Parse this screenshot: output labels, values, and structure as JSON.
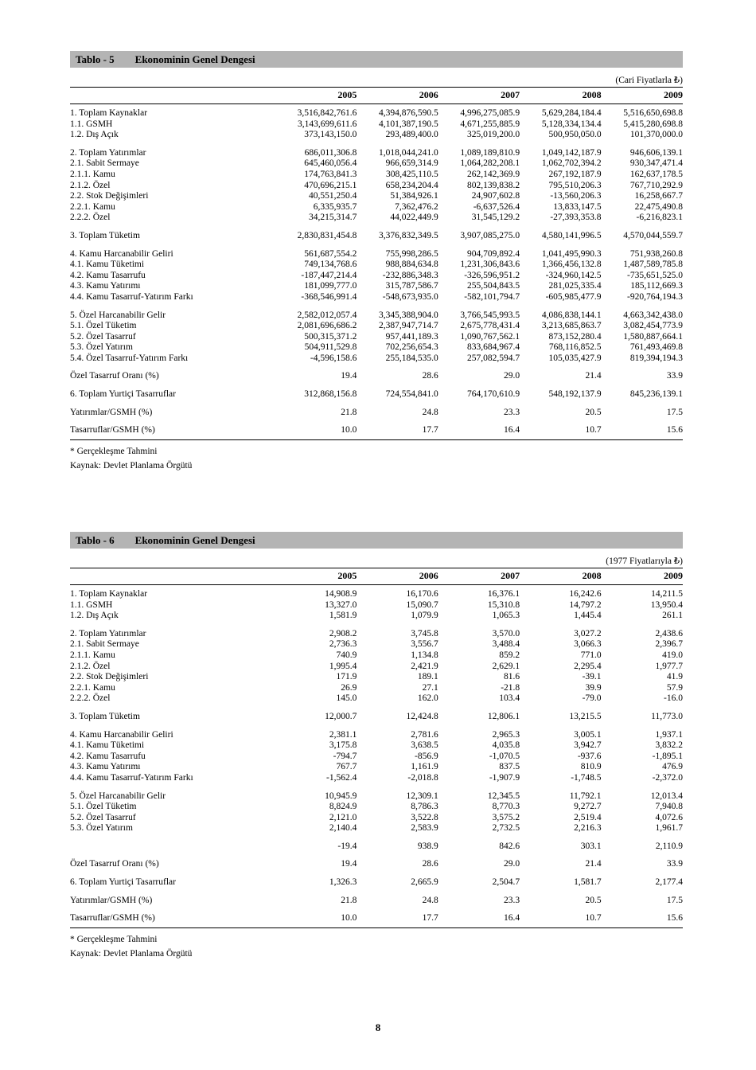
{
  "page": {
    "number": "8"
  },
  "colors": {
    "title_bar_gray": "#b4b4b4",
    "text": "#000000",
    "background": "#ffffff"
  },
  "tables": [
    {
      "title_label": "Tablo - 5",
      "title_text": "Ekonominin Genel Dengesi",
      "unit_note": "(Cari Fiyatlarla ₺)",
      "years": [
        "2005",
        "2006",
        "2007",
        "2008",
        "2009"
      ],
      "rows": [
        {
          "label": "1. Toplam Kaynaklar",
          "gap": false,
          "values": [
            "3,516,842,761.6",
            "4,394,876,590.5",
            "4,996,275,085.9",
            "5,629,284,184.4",
            "5,516,650,698.8"
          ]
        },
        {
          "label": "1.1. GSMH",
          "gap": false,
          "values": [
            "3,143,699,611.6",
            "4,101,387,190.5",
            "4,671,255,885.9",
            "5,128,334,134.4",
            "5,415,280,698.8"
          ]
        },
        {
          "label": "1.2. Dış Açık",
          "gap": false,
          "values": [
            "373,143,150.0",
            "293,489,400.0",
            "325,019,200.0",
            "500,950,050.0",
            "101,370,000.0"
          ]
        },
        {
          "label": "2. Toplam Yatırımlar",
          "gap": true,
          "values": [
            "686,011,306.8",
            "1,018,044,241.0",
            "1,089,189,810.9",
            "1,049,142,187.9",
            "946,606,139.1"
          ]
        },
        {
          "label": "2.1. Sabit Sermaye",
          "gap": false,
          "values": [
            "645,460,056.4",
            "966,659,314.9",
            "1,064,282,208.1",
            "1,062,702,394.2",
            "930,347,471.4"
          ]
        },
        {
          "label": "2.1.1. Kamu",
          "gap": false,
          "values": [
            "174,763,841.3",
            "308,425,110.5",
            "262,142,369.9",
            "267,192,187.9",
            "162,637,178.5"
          ]
        },
        {
          "label": "2.1.2. Özel",
          "gap": false,
          "values": [
            "470,696,215.1",
            "658,234,204.4",
            "802,139,838.2",
            "795,510,206.3",
            "767,710,292.9"
          ]
        },
        {
          "label": "2.2. Stok Değişimleri",
          "gap": false,
          "values": [
            "40,551,250.4",
            "51,384,926.1",
            "24,907,602.8",
            "-13,560,206.3",
            "16,258,667.7"
          ]
        },
        {
          "label": "2.2.1. Kamu",
          "gap": false,
          "values": [
            "6,335,935.7",
            "7,362,476.2",
            "-6,637,526.4",
            "13,833,147.5",
            "22,475,490.8"
          ]
        },
        {
          "label": "2.2.2. Özel",
          "gap": false,
          "values": [
            "34,215,314.7",
            "44,022,449.9",
            "31,545,129.2",
            "-27,393,353.8",
            "-6,216,823.1"
          ]
        },
        {
          "label": "3. Toplam Tüketim",
          "gap": true,
          "values": [
            "2,830,831,454.8",
            "3,376,832,349.5",
            "3,907,085,275.0",
            "4,580,141,996.5",
            "4,570,044,559.7"
          ]
        },
        {
          "label": "4. Kamu Harcanabilir Geliri",
          "gap": true,
          "values": [
            "561,687,554.2",
            "755,998,286.5",
            "904,709,892.4",
            "1,041,495,990.3",
            "751,938,260.8"
          ]
        },
        {
          "label": "4.1. Kamu Tüketimi",
          "gap": false,
          "values": [
            "749,134,768.6",
            "988,884,634.8",
            "1,231,306,843.6",
            "1,366,456,132.8",
            "1,487,589,785.8"
          ]
        },
        {
          "label": "4.2. Kamu Tasarrufu",
          "gap": false,
          "values": [
            "-187,447,214.4",
            "-232,886,348.3",
            "-326,596,951.2",
            "-324,960,142.5",
            "-735,651,525.0"
          ]
        },
        {
          "label": "4.3. Kamu Yatırımı",
          "gap": false,
          "values": [
            "181,099,777.0",
            "315,787,586.7",
            "255,504,843.5",
            "281,025,335.4",
            "185,112,669.3"
          ]
        },
        {
          "label": "4.4. Kamu Tasarruf-Yatırım Farkı",
          "gap": false,
          "values": [
            "-368,546,991.4",
            "-548,673,935.0",
            "-582,101,794.7",
            "-605,985,477.9",
            "-920,764,194.3"
          ]
        },
        {
          "label": "5. Özel Harcanabilir Gelir",
          "gap": true,
          "values": [
            "2,582,012,057.4",
            "3,345,388,904.0",
            "3,766,545,993.5",
            "4,086,838,144.1",
            "4,663,342,438.0"
          ]
        },
        {
          "label": "5.1. Özel Tüketim",
          "gap": false,
          "values": [
            "2,081,696,686.2",
            "2,387,947,714.7",
            "2,675,778,431.4",
            "3,213,685,863.7",
            "3,082,454,773.9"
          ]
        },
        {
          "label": "5.2. Özel Tasarruf",
          "gap": false,
          "values": [
            "500,315,371.2",
            "957,441,189.3",
            "1,090,767,562.1",
            "873,152,280.4",
            "1,580,887,664.1"
          ]
        },
        {
          "label": "5.3. Özel Yatırım",
          "gap": false,
          "values": [
            "504,911,529.8",
            "702,256,654.3",
            "833,684,967.4",
            "768,116,852.5",
            "761,493,469.8"
          ]
        },
        {
          "label": "5.4. Özel Tasarruf-Yatırım Farkı",
          "gap": false,
          "values": [
            "-4,596,158.6",
            "255,184,535.0",
            "257,082,594.7",
            "105,035,427.9",
            "819,394,194.3"
          ]
        },
        {
          "label": "Özel Tasarruf Oranı (%)",
          "gap": true,
          "values": [
            "19.4",
            "28.6",
            "29.0",
            "21.4",
            "33.9"
          ]
        },
        {
          "label": "6. Toplam Yurtiçi Tasarruflar",
          "gap": true,
          "values": [
            "312,868,156.8",
            "724,554,841.0",
            "764,170,610.9",
            "548,192,137.9",
            "845,236,139.1"
          ]
        },
        {
          "label": "Yatırımlar/GSMH (%)",
          "gap": true,
          "values": [
            "21.8",
            "24.8",
            "23.3",
            "20.5",
            "17.5"
          ]
        },
        {
          "label": "Tasarruflar/GSMH (%)",
          "gap": true,
          "values": [
            "10.0",
            "17.7",
            "16.4",
            "10.7",
            "15.6"
          ]
        }
      ],
      "footnotes": [
        "* Gerçekleşme Tahmini",
        "Kaynak: Devlet Planlama Örgütü"
      ]
    },
    {
      "title_label": "Tablo - 6",
      "title_text": "Ekonominin Genel Dengesi",
      "unit_note": "(1977 Fiyatlarıyla ₺)",
      "years": [
        "2005",
        "2006",
        "2007",
        "2008",
        "2009"
      ],
      "rows": [
        {
          "label": "1. Toplam Kaynaklar",
          "gap": false,
          "values": [
            "14,908.9",
            "16,170.6",
            "16,376.1",
            "16,242.6",
            "14,211.5"
          ]
        },
        {
          "label": "1.1. GSMH",
          "gap": false,
          "values": [
            "13,327.0",
            "15,090.7",
            "15,310.8",
            "14,797.2",
            "13,950.4"
          ]
        },
        {
          "label": "1.2. Dış Açık",
          "gap": false,
          "values": [
            "1,581.9",
            "1,079.9",
            "1,065.3",
            "1,445.4",
            "261.1"
          ]
        },
        {
          "label": "2. Toplam Yatırımlar",
          "gap": true,
          "values": [
            "2,908.2",
            "3,745.8",
            "3,570.0",
            "3,027.2",
            "2,438.6"
          ]
        },
        {
          "label": "2.1. Sabit Sermaye",
          "gap": false,
          "values": [
            "2,736.3",
            "3,556.7",
            "3,488.4",
            "3,066.3",
            "2,396.7"
          ]
        },
        {
          "label": "2.1.1. Kamu",
          "gap": false,
          "values": [
            "740.9",
            "1,134.8",
            "859.2",
            "771.0",
            "419.0"
          ]
        },
        {
          "label": "2.1.2. Özel",
          "gap": false,
          "values": [
            "1,995.4",
            "2,421.9",
            "2,629.1",
            "2,295.4",
            "1,977.7"
          ]
        },
        {
          "label": "2.2. Stok Değişimleri",
          "gap": false,
          "values": [
            "171.9",
            "189.1",
            "81.6",
            "-39.1",
            "41.9"
          ]
        },
        {
          "label": "2.2.1. Kamu",
          "gap": false,
          "values": [
            "26.9",
            "27.1",
            "-21.8",
            "39.9",
            "57.9"
          ]
        },
        {
          "label": "2.2.2. Özel",
          "gap": false,
          "values": [
            "145.0",
            "162.0",
            "103.4",
            "-79.0",
            "-16.0"
          ]
        },
        {
          "label": "3. Toplam Tüketim",
          "gap": true,
          "values": [
            "12,000.7",
            "12,424.8",
            "12,806.1",
            "13,215.5",
            "11,773.0"
          ]
        },
        {
          "label": "4. Kamu Harcanabilir Geliri",
          "gap": true,
          "values": [
            "2,381.1",
            "2,781.6",
            "2,965.3",
            "3,005.1",
            "1,937.1"
          ]
        },
        {
          "label": "4.1. Kamu Tüketimi",
          "gap": false,
          "values": [
            "3,175.8",
            "3,638.5",
            "4,035.8",
            "3,942.7",
            "3,832.2"
          ]
        },
        {
          "label": "4.2. Kamu Tasarrufu",
          "gap": false,
          "values": [
            "-794.7",
            "-856.9",
            "-1,070.5",
            "-937.6",
            "-1,895.1"
          ]
        },
        {
          "label": "4.3. Kamu Yatırımı",
          "gap": false,
          "values": [
            "767.7",
            "1,161.9",
            "837.5",
            "810.9",
            "476.9"
          ]
        },
        {
          "label": "4.4. Kamu Tasarruf-Yatırım Farkı",
          "gap": false,
          "values": [
            "-1,562.4",
            "-2,018.8",
            "-1,907.9",
            "-1,748.5",
            "-2,372.0"
          ]
        },
        {
          "label": "5. Özel Harcanabilir Gelir",
          "gap": true,
          "values": [
            "10,945.9",
            "12,309.1",
            "12,345.5",
            "11,792.1",
            "12,013.4"
          ]
        },
        {
          "label": "5.1. Özel Tüketim",
          "gap": false,
          "values": [
            "8,824.9",
            "8,786.3",
            "8,770.3",
            "9,272.7",
            "7,940.8"
          ]
        },
        {
          "label": "5.2. Özel Tasarruf",
          "gap": false,
          "values": [
            "2,121.0",
            "3,522.8",
            "3,575.2",
            "2,519.4",
            "4,072.6"
          ]
        },
        {
          "label": "5.3. Özel Yatırım",
          "gap": false,
          "values": [
            "2,140.4",
            "2,583.9",
            "2,732.5",
            "2,216.3",
            "1,961.7"
          ]
        },
        {
          "label": "",
          "gap": true,
          "values": [
            "-19.4",
            "938.9",
            "842.6",
            "303.1",
            "2,110.9"
          ]
        },
        {
          "label": "Özel Tasarruf Oranı (%)",
          "gap": true,
          "values": [
            "19.4",
            "28.6",
            "29.0",
            "21.4",
            "33.9"
          ]
        },
        {
          "label": "6. Toplam Yurtiçi Tasarruflar",
          "gap": true,
          "values": [
            "1,326.3",
            "2,665.9",
            "2,504.7",
            "1,581.7",
            "2,177.4"
          ]
        },
        {
          "label": "Yatırımlar/GSMH (%)",
          "gap": true,
          "values": [
            "21.8",
            "24.8",
            "23.3",
            "20.5",
            "17.5"
          ]
        },
        {
          "label": "Tasarruflar/GSMH (%)",
          "gap": true,
          "values": [
            "10.0",
            "17.7",
            "16.4",
            "10.7",
            "15.6"
          ]
        }
      ],
      "footnotes": [
        "* Gerçekleşme Tahmini",
        "Kaynak: Devlet Planlama Örgütü"
      ]
    }
  ]
}
